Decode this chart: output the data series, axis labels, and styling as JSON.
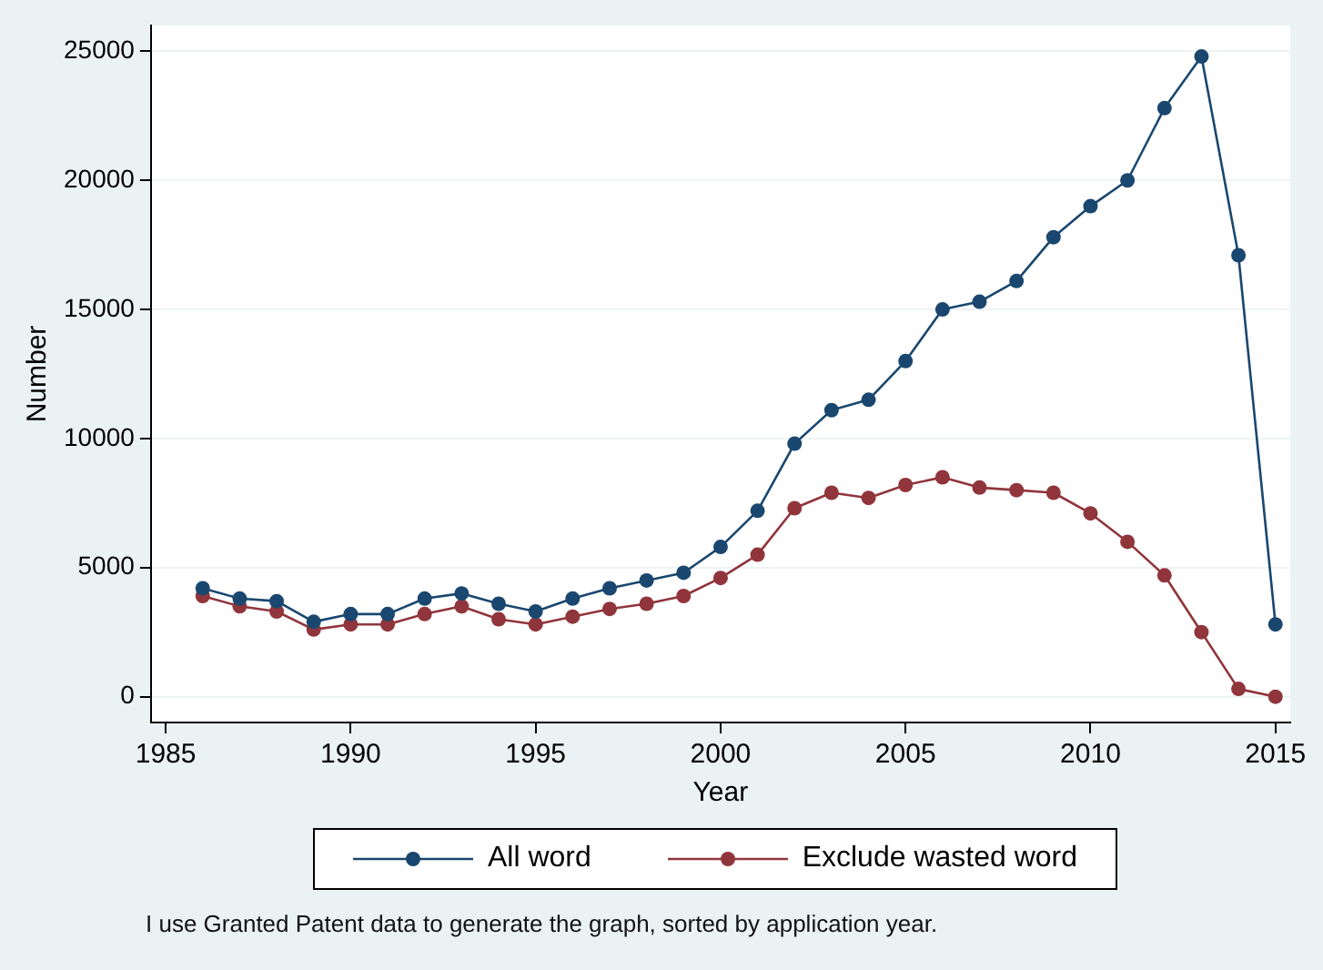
{
  "chart_data": {
    "type": "line",
    "xlabel": "Year",
    "ylabel": "Number",
    "x": [
      1986,
      1987,
      1988,
      1989,
      1990,
      1991,
      1992,
      1993,
      1994,
      1995,
      1996,
      1997,
      1998,
      1999,
      2000,
      2001,
      2002,
      2003,
      2004,
      2005,
      2006,
      2007,
      2008,
      2009,
      2010,
      2011,
      2012,
      2013,
      2014,
      2015
    ],
    "series": [
      {
        "name": "All word",
        "color": "#1a476f",
        "values": [
          4200,
          3800,
          3700,
          2900,
          3200,
          3200,
          3800,
          4000,
          3600,
          3300,
          3800,
          4200,
          4500,
          4800,
          5800,
          7200,
          9800,
          11100,
          11500,
          13000,
          15000,
          15300,
          16100,
          17800,
          19000,
          20000,
          22800,
          24800,
          17100,
          2800
        ]
      },
      {
        "name": "Exclude wasted word",
        "color": "#90353b",
        "values": [
          3900,
          3500,
          3300,
          2600,
          2800,
          2800,
          3200,
          3500,
          3000,
          2800,
          3100,
          3400,
          3600,
          3900,
          4600,
          5500,
          7300,
          7900,
          7700,
          8200,
          8500,
          8100,
          8000,
          7900,
          7100,
          6000,
          4700,
          2500,
          300,
          0
        ]
      }
    ],
    "xlim": [
      1984.6,
      2015.4
    ],
    "xticks": [
      1985,
      1990,
      1995,
      2000,
      2005,
      2010,
      2015
    ],
    "ylim": [
      -1000,
      26000
    ],
    "yticks": [
      0,
      5000,
      10000,
      15000,
      20000,
      25000
    ],
    "grid": "y",
    "legend": "bottom",
    "marker": "circle",
    "line_style": "solid",
    "annotations": [
      "I use Granted Patent data to generate the graph, sorted by application year."
    ]
  }
}
